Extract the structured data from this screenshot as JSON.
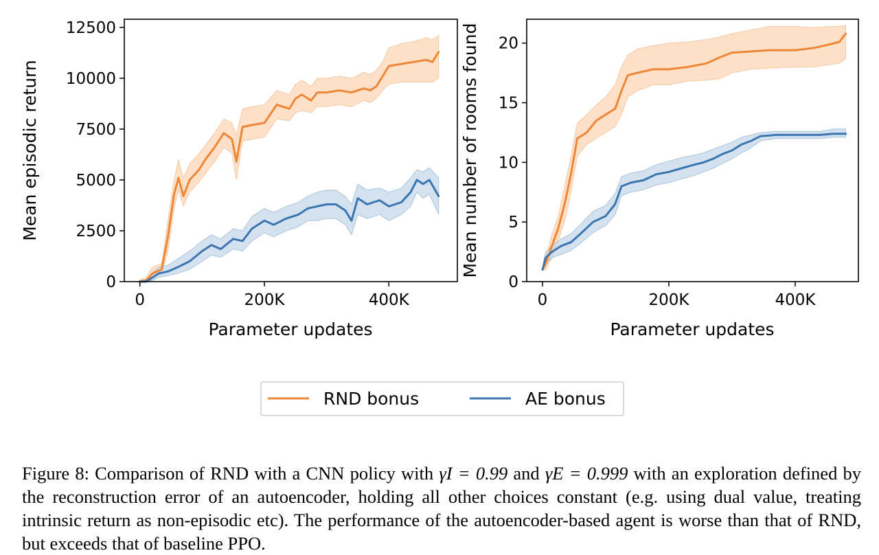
{
  "colors": {
    "rnd": "#ef8636",
    "ae": "#3b75af",
    "rnd_band": "#fcd6b5",
    "ae_band": "#c5d8ea"
  },
  "legend": {
    "rnd": "RND bonus",
    "ae": "AE bonus"
  },
  "caption": {
    "prefix": "Figure 8: Comparison of RND with a CNN policy with ",
    "gamma_i": "γI = 0.99",
    "mid": " and ",
    "gamma_e": "γE = 0.999",
    "suffix": " with an exploration defined by the reconstruction error of an autoencoder, holding all other choices constant (e.g. using dual value, treating intrinsic return as non-episodic etc). The performance of the autoencoder-based agent is worse than that of RND, but exceeds that of baseline PPO."
  },
  "chart_data": [
    {
      "type": "line",
      "xlabel": "Parameter updates",
      "ylabel": "Mean episodic return",
      "xlim": [
        -25000,
        510000
      ],
      "ylim": [
        0,
        12900
      ],
      "xticks": [
        0,
        200000,
        400000
      ],
      "xtick_labels": [
        "0",
        "200K",
        "400K"
      ],
      "yticks": [
        0,
        2500,
        5000,
        7500,
        10000,
        12500
      ],
      "ytick_labels": [
        "0",
        "2500",
        "5000",
        "7500",
        "10000",
        "12500"
      ],
      "legend_position": "below",
      "grid": false,
      "series": [
        {
          "name": "RND bonus",
          "color": "#ef8636",
          "band": "#fcd6b5",
          "x": [
            0,
            10000,
            20000,
            35000,
            45000,
            55000,
            62000,
            70000,
            80000,
            95000,
            105000,
            120000,
            135000,
            148000,
            155000,
            165000,
            180000,
            200000,
            220000,
            240000,
            250000,
            260000,
            275000,
            285000,
            300000,
            320000,
            340000,
            360000,
            370000,
            380000,
            390000,
            400000,
            420000,
            440000,
            460000,
            470000,
            480000
          ],
          "y": [
            0,
            50,
            400,
            600,
            2200,
            4300,
            5100,
            4200,
            5000,
            5500,
            6000,
            6600,
            7300,
            7000,
            5900,
            7600,
            7700,
            7800,
            8700,
            8500,
            9000,
            9200,
            8900,
            9300,
            9300,
            9400,
            9300,
            9500,
            9400,
            9600,
            10100,
            10600,
            10700,
            10800,
            10900,
            10800,
            11300
          ],
          "lo": [
            0,
            0,
            100,
            400,
            1500,
            3600,
            4500,
            3700,
            4400,
            4900,
            5300,
            5900,
            6600,
            6300,
            5000,
            6900,
            7000,
            7100,
            8000,
            7900,
            8300,
            8400,
            8300,
            8600,
            8600,
            8700,
            8600,
            8900,
            8800,
            9000,
            9400,
            9700,
            9800,
            9800,
            9800,
            9800,
            10000
          ],
          "hi": [
            100,
            200,
            700,
            900,
            3000,
            5000,
            6000,
            5100,
            5800,
            6300,
            6700,
            7300,
            8000,
            7800,
            7200,
            8500,
            8600,
            8700,
            9400,
            9200,
            9700,
            9900,
            9600,
            10000,
            10000,
            10100,
            10000,
            10300,
            10200,
            10400,
            10800,
            11500,
            11700,
            11800,
            12000,
            11900,
            12100
          ]
        },
        {
          "name": "AE bonus",
          "color": "#3b75af",
          "band": "#c5d8ea",
          "x": [
            0,
            10000,
            20000,
            30000,
            45000,
            60000,
            80000,
            100000,
            115000,
            130000,
            150000,
            165000,
            180000,
            200000,
            215000,
            235000,
            255000,
            270000,
            285000,
            300000,
            315000,
            330000,
            340000,
            350000,
            365000,
            385000,
            400000,
            420000,
            435000,
            445000,
            455000,
            465000,
            480000
          ],
          "y": [
            0,
            0,
            200,
            400,
            500,
            700,
            1000,
            1500,
            1800,
            1600,
            2100,
            2000,
            2600,
            3000,
            2800,
            3100,
            3300,
            3600,
            3700,
            3800,
            3800,
            3500,
            3000,
            4100,
            3800,
            4000,
            3700,
            3900,
            4400,
            5000,
            4800,
            5000,
            4200
          ],
          "lo": [
            0,
            0,
            50,
            200,
            300,
            400,
            600,
            1000,
            1300,
            1200,
            1600,
            1500,
            2000,
            2400,
            2200,
            2500,
            2700,
            3000,
            3000,
            3100,
            3100,
            2800,
            2300,
            3300,
            3100,
            3300,
            3000,
            3300,
            3700,
            4400,
            4100,
            4300,
            3300
          ],
          "hi": [
            50,
            100,
            400,
            700,
            800,
            1100,
            1500,
            2000,
            2300,
            2100,
            2600,
            2500,
            3200,
            3600,
            3400,
            3700,
            3900,
            4200,
            4400,
            4500,
            4500,
            4200,
            3800,
            4800,
            4500,
            4600,
            4400,
            4600,
            5100,
            5500,
            5400,
            5600,
            5100
          ]
        }
      ]
    },
    {
      "type": "line",
      "xlabel": "Parameter updates",
      "ylabel": "Mean number of rooms found",
      "xlim": [
        -25000,
        500000
      ],
      "ylim": [
        0,
        22
      ],
      "xticks": [
        0,
        200000,
        400000
      ],
      "xtick_labels": [
        "0",
        "200K",
        "400K"
      ],
      "yticks": [
        0,
        5,
        10,
        15,
        20
      ],
      "ytick_labels": [
        "0",
        "5",
        "10",
        "15",
        "20"
      ],
      "legend_position": "below",
      "grid": false,
      "series": [
        {
          "name": "RND bonus",
          "color": "#ef8636",
          "band": "#fcd6b5",
          "x": [
            0,
            5000,
            15000,
            25000,
            35000,
            45000,
            55000,
            70000,
            85000,
            100000,
            115000,
            125000,
            135000,
            150000,
            175000,
            200000,
            230000,
            260000,
            280000,
            300000,
            330000,
            360000,
            400000,
            430000,
            455000,
            470000,
            480000
          ],
          "y": [
            1,
            1.5,
            3,
            4.5,
            6.5,
            9,
            12,
            12.5,
            13.5,
            14,
            14.5,
            16,
            17.3,
            17.5,
            17.8,
            17.8,
            18,
            18.3,
            18.8,
            19.2,
            19.3,
            19.4,
            19.4,
            19.6,
            19.9,
            20.1,
            20.8
          ],
          "lo": [
            1,
            1,
            2,
            3.5,
            5,
            7.5,
            10.5,
            11.5,
            12,
            12.5,
            13,
            14,
            15.5,
            16,
            16.5,
            16.5,
            16.8,
            16.9,
            17,
            17.5,
            17.8,
            17.9,
            18,
            18,
            18.2,
            18.3,
            18.7
          ],
          "hi": [
            1.2,
            2,
            4,
            5.5,
            8,
            10.5,
            13.3,
            14,
            14.8,
            15.5,
            16.5,
            18,
            19,
            19.5,
            19.8,
            20,
            20.1,
            20.3,
            20.5,
            20.8,
            21.1,
            21.4,
            21.4,
            21.3,
            21.4,
            21.4,
            21.5
          ]
        },
        {
          "name": "AE bonus",
          "color": "#3b75af",
          "band": "#c5d8ea",
          "x": [
            0,
            5000,
            15000,
            30000,
            45000,
            60000,
            80000,
            100000,
            115000,
            125000,
            140000,
            160000,
            180000,
            200000,
            220000,
            240000,
            255000,
            270000,
            285000,
            300000,
            315000,
            330000,
            345000,
            370000,
            400000,
            440000,
            460000,
            480000
          ],
          "y": [
            1,
            2,
            2.5,
            3,
            3.3,
            4,
            5,
            5.5,
            6.5,
            8,
            8.3,
            8.5,
            9,
            9.2,
            9.5,
            9.8,
            10,
            10.3,
            10.7,
            11,
            11.5,
            11.8,
            12.2,
            12.3,
            12.3,
            12.3,
            12.4,
            12.4
          ],
          "lo": [
            1,
            1.5,
            2,
            2.3,
            2.6,
            3.2,
            4.1,
            4.7,
            5.6,
            7.2,
            7.5,
            7.7,
            8.1,
            8.3,
            8.6,
            8.9,
            9.2,
            9.5,
            9.9,
            10.3,
            10.8,
            11.2,
            11.8,
            12,
            12,
            12,
            12.1,
            12.1
          ],
          "hi": [
            1.2,
            2.5,
            3,
            3.6,
            4,
            4.8,
            5.9,
            6.4,
            7.4,
            8.8,
            9.1,
            9.3,
            9.8,
            10.1,
            10.4,
            10.6,
            10.8,
            11.1,
            11.4,
            11.7,
            12.1,
            12.3,
            12.5,
            12.6,
            12.6,
            12.6,
            12.8,
            12.8
          ]
        }
      ]
    }
  ]
}
